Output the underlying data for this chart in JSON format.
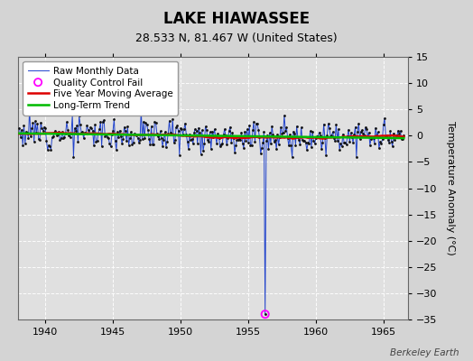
{
  "title": "LAKE HIAWASSEE",
  "subtitle": "28.533 N, 81.467 W (United States)",
  "ylabel": "Temperature Anomaly (°C)",
  "credit": "Berkeley Earth",
  "xlim": [
    1938.0,
    1966.8
  ],
  "ylim": [
    -35,
    15
  ],
  "yticks": [
    -35,
    -30,
    -25,
    -20,
    -15,
    -10,
    -5,
    0,
    5,
    10,
    15
  ],
  "xticks": [
    1940,
    1945,
    1950,
    1955,
    1960,
    1965
  ],
  "bg_color": "#d4d4d4",
  "plot_bg_color": "#e0e0e0",
  "grid_color": "#ffffff",
  "raw_line_color": "#2244cc",
  "raw_marker_color": "#111111",
  "moving_avg_color": "#dd0000",
  "trend_color": "#00bb00",
  "qc_fail_color": "#ff00ff",
  "qc_fail_x": 1956.25,
  "qc_fail_y": -34.0,
  "spike_x": 1956.25,
  "spike_y": -34.0,
  "noise_std": 1.5,
  "seed": 12
}
